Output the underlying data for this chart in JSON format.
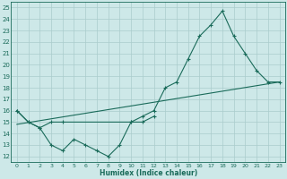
{
  "bg_color": "#cde8e8",
  "line_color": "#1a6b5a",
  "grid_color": "#aacccc",
  "xlabel": "Humidex (Indice chaleur)",
  "xlim": [
    -0.5,
    23.5
  ],
  "ylim": [
    11.5,
    25.5
  ],
  "yticks": [
    12,
    13,
    14,
    15,
    16,
    17,
    18,
    19,
    20,
    21,
    22,
    23,
    24,
    25
  ],
  "xticks": [
    0,
    1,
    2,
    3,
    4,
    5,
    6,
    7,
    8,
    9,
    10,
    11,
    12,
    13,
    14,
    15,
    16,
    17,
    18,
    19,
    20,
    21,
    22,
    23
  ],
  "line1_x": [
    0,
    1,
    2,
    3,
    4,
    10,
    11,
    12,
    13,
    14,
    15,
    16,
    17,
    18,
    19,
    20,
    21,
    22,
    23
  ],
  "line1_y": [
    16,
    15,
    14.5,
    15,
    15,
    15,
    15.5,
    16,
    18,
    18.5,
    20.5,
    22.5,
    23.5,
    24.7,
    22.5,
    21,
    19.5,
    18.5,
    18.5
  ],
  "line2_x": [
    0,
    1,
    2,
    3,
    4,
    5,
    6,
    7,
    8,
    9,
    10,
    11,
    12
  ],
  "line2_y": [
    16,
    15,
    14.5,
    13,
    12.5,
    13.5,
    13,
    12.5,
    12,
    13,
    15,
    15,
    15.5
  ],
  "line3_x": [
    0,
    23
  ],
  "line3_y": [
    14.8,
    18.5
  ]
}
